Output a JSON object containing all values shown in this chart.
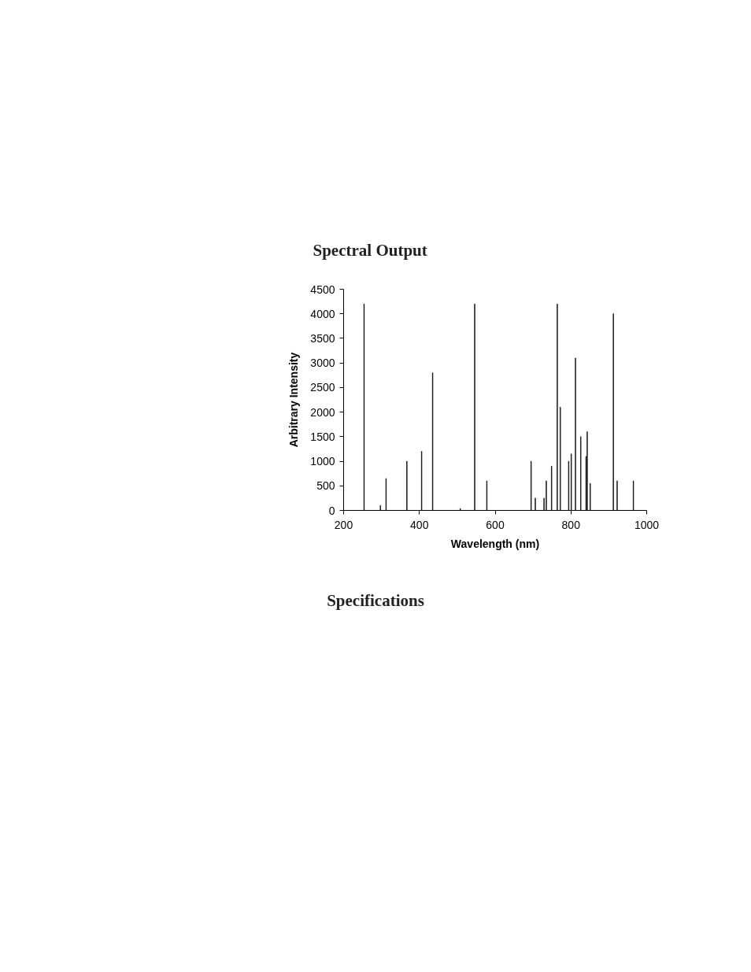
{
  "chart_data": {
    "type": "bar",
    "title": "Spectral Output",
    "xlabel": "Wavelength (nm)",
    "ylabel": "Arbitrary Intensity",
    "x": [
      254,
      297,
      312,
      367,
      406,
      435,
      508,
      546,
      578,
      695,
      706,
      729,
      735,
      749,
      764,
      772,
      794,
      801,
      812,
      826,
      840,
      843,
      851,
      912,
      922,
      965
    ],
    "values": [
      4200,
      100,
      650,
      1000,
      1200,
      2800,
      40,
      4200,
      600,
      1000,
      250,
      250,
      600,
      900,
      4200,
      2100,
      1000,
      1150,
      3100,
      1500,
      1100,
      1600,
      550,
      4000,
      600,
      600
    ],
    "color": "#000000",
    "xlim": [
      200,
      1000
    ],
    "ylim": [
      0,
      4500
    ],
    "xticks": [
      200,
      400,
      600,
      800,
      1000
    ],
    "yticks": [
      0,
      500,
      1000,
      1500,
      2000,
      2500,
      3000,
      3500,
      4000,
      4500
    ],
    "annotations": [
      "Specifications"
    ]
  }
}
